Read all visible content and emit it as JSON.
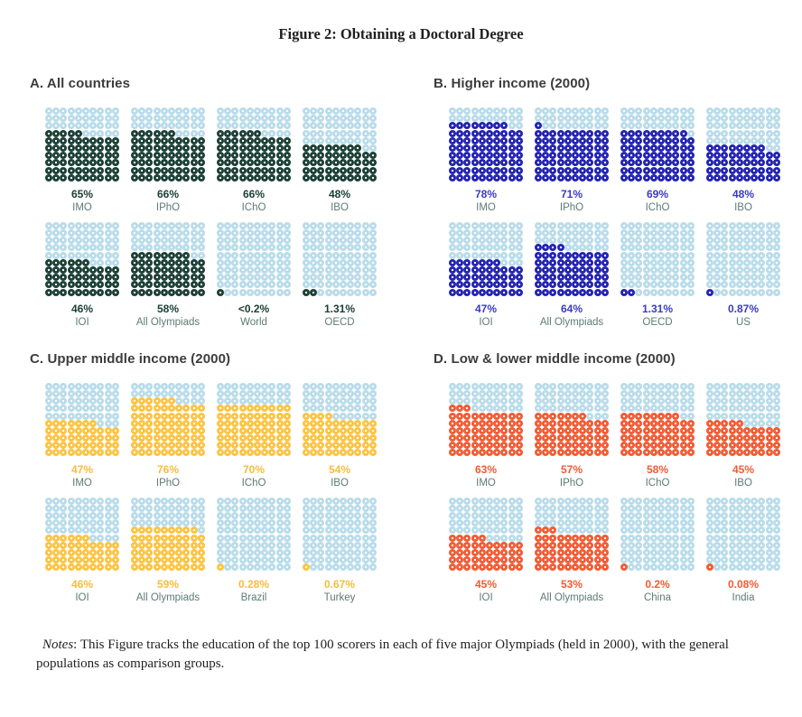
{
  "figure_title": {
    "prefix": "Figure 2:",
    "text": " Obtaining a Doctoral Degree"
  },
  "notes": {
    "label": "Notes",
    "text": ": This Figure tracks the education of the top 100 scorers in each of five major Olympiads (held in 2000), with the general populations as comparison groups."
  },
  "colors": {
    "empty_dot": "#b9dcea",
    "panel_title_text": "#3c3c3c",
    "group_label_text": "#5d7b74"
  },
  "chart_data": {
    "type": "waffle",
    "grid": "10x10, one dot = 1 percentage point, filled bottom-up left-to-right",
    "title": "Figure 2: Obtaining a Doctoral Degree",
    "panels": [
      {
        "label": "A. All countries",
        "accent": "#1c4036",
        "label_color": "#1c4036",
        "charts": [
          {
            "group": "IMO",
            "value_label": "65%",
            "filled_dots": 65
          },
          {
            "group": "IPhO",
            "value_label": "66%",
            "filled_dots": 66
          },
          {
            "group": "IChO",
            "value_label": "66%",
            "filled_dots": 66
          },
          {
            "group": "IBO",
            "value_label": "48%",
            "filled_dots": 48
          },
          {
            "group": "IOI",
            "value_label": "46%",
            "filled_dots": 46
          },
          {
            "group": "All Olympiads",
            "value_label": "58%",
            "filled_dots": 58
          },
          {
            "group": "World",
            "value_label": "<0.2%",
            "filled_dots": 1
          },
          {
            "group": "OECD",
            "value_label": "1.31%",
            "filled_dots": 2
          }
        ]
      },
      {
        "label": "B. Higher income (2000)",
        "accent": "#2323b2",
        "label_color": "#3a3ac8",
        "charts": [
          {
            "group": "IMO",
            "value_label": "78%",
            "filled_dots": 78
          },
          {
            "group": "IPhO",
            "value_label": "71%",
            "filled_dots": 71
          },
          {
            "group": "IChO",
            "value_label": "69%",
            "filled_dots": 69
          },
          {
            "group": "IBO",
            "value_label": "48%",
            "filled_dots": 48
          },
          {
            "group": "IOI",
            "value_label": "47%",
            "filled_dots": 47
          },
          {
            "group": "All Olympiads",
            "value_label": "64%",
            "filled_dots": 64
          },
          {
            "group": "OECD",
            "value_label": "1.31%",
            "filled_dots": 2
          },
          {
            "group": "US",
            "value_label": "0.87%",
            "filled_dots": 1
          }
        ]
      },
      {
        "label": "C. Upper middle income (2000)",
        "accent": "#fcc444",
        "label_color": "#f8bc3d",
        "charts": [
          {
            "group": "IMO",
            "value_label": "47%",
            "filled_dots": 47
          },
          {
            "group": "IPhO",
            "value_label": "76%",
            "filled_dots": 76
          },
          {
            "group": "IChO",
            "value_label": "70%",
            "filled_dots": 70
          },
          {
            "group": "IBO",
            "value_label": "54%",
            "filled_dots": 54
          },
          {
            "group": "IOI",
            "value_label": "46%",
            "filled_dots": 46
          },
          {
            "group": "All Olympiads",
            "value_label": "59%",
            "filled_dots": 59
          },
          {
            "group": "Brazil",
            "value_label": "0.28%",
            "filled_dots": 1
          },
          {
            "group": "Turkey",
            "value_label": "0.67%",
            "filled_dots": 1
          }
        ]
      },
      {
        "label": "D. Low & lower middle income (2000)",
        "accent": "#f25b34",
        "label_color": "#f25b34",
        "charts": [
          {
            "group": "IMO",
            "value_label": "63%",
            "filled_dots": 63
          },
          {
            "group": "IPhO",
            "value_label": "57%",
            "filled_dots": 57
          },
          {
            "group": "IChO",
            "value_label": "58%",
            "filled_dots": 58
          },
          {
            "group": "IBO",
            "value_label": "45%",
            "filled_dots": 45
          },
          {
            "group": "IOI",
            "value_label": "45%",
            "filled_dots": 45
          },
          {
            "group": "All Olympiads",
            "value_label": "53%",
            "filled_dots": 53
          },
          {
            "group": "China",
            "value_label": "0.2%",
            "filled_dots": 1
          },
          {
            "group": "India",
            "value_label": "0.08%",
            "filled_dots": 1
          }
        ]
      }
    ]
  }
}
